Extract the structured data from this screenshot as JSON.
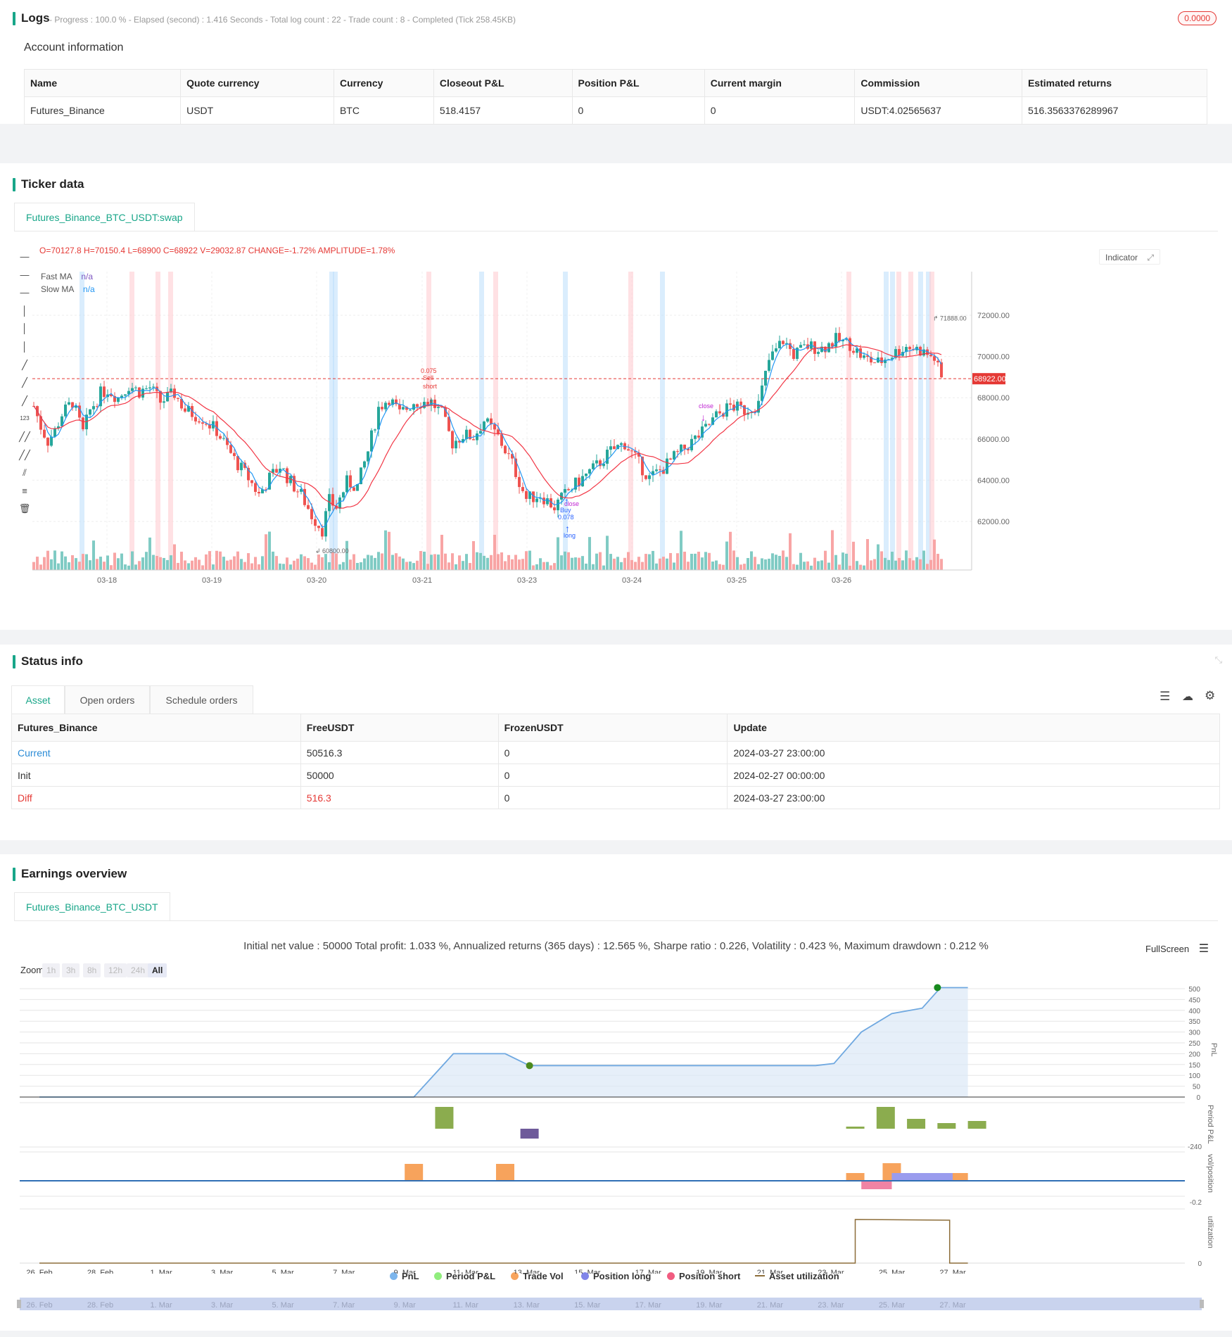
{
  "logs": {
    "title": "Logs",
    "summary": "- Progress : 100.0 % - Elapsed (second) : 1.416  Seconds - Total log count : 22 - Trade count : 8 - Completed (Tick 258.45KB)",
    "badge": "0.0000"
  },
  "account": {
    "heading": "Account information",
    "columns": [
      "Name",
      "Quote currency",
      "Currency",
      "Closeout P&L",
      "Position P&L",
      "Current margin",
      "Commission",
      "Estimated returns"
    ],
    "row": [
      "Futures_Binance",
      "USDT",
      "BTC",
      "518.4157",
      "0",
      "0",
      "USDT:4.02565637",
      "516.3563376289967"
    ]
  },
  "ticker": {
    "title": "Ticker data",
    "tab": "Futures_Binance_BTC_USDT:swap",
    "ohlc": "O=70127.8 H=70150.4 L=68900 C=68922 V=29032.87 CHANGE=-1.72% AMPLITUDE=1.78%",
    "fast_ma_label": "Fast MA",
    "fast_ma_value": "n/a",
    "slow_ma_label": "Slow MA",
    "slow_ma_value": "n/a",
    "indicator_button": "Indicator",
    "price_ticks": [
      "72000.00",
      "70000.00",
      "68000.00",
      "66000.00",
      "64000.00",
      "62000.00"
    ],
    "current_price": "68922.00",
    "high_marker": "71888.00",
    "low_marker": "60800.00",
    "date_ticks": [
      "03-18",
      "03-19",
      "03-20",
      "03-21",
      "03-23",
      "03-24",
      "03-25",
      "03-26"
    ],
    "sell_labels": [
      "0.075",
      "Sell",
      "short"
    ],
    "buy_labels": [
      "close",
      "Buy",
      "0.078",
      "long"
    ],
    "close_label": "close",
    "colors": {
      "up": "#26a69a",
      "down": "#ef5350",
      "fast_ma": "#2196f3",
      "slow_ma": "#f23645"
    }
  },
  "status": {
    "title": "Status info",
    "tabs": [
      "Asset",
      "Open orders",
      "Schedule orders"
    ],
    "columns": [
      "Futures_Binance",
      "FreeUSDT",
      "FrozenUSDT",
      "Update"
    ],
    "rows": [
      [
        "Current",
        "50516.3",
        "0",
        "2024-03-27 23:00:00"
      ],
      [
        "Init",
        "50000",
        "0",
        "2024-02-27 00:00:00"
      ],
      [
        "Diff",
        "516.3",
        "0",
        "2024-03-27 23:00:00"
      ]
    ]
  },
  "earnings": {
    "title": "Earnings overview",
    "tab": "Futures_Binance_BTC_USDT",
    "summary": "Initial net value : 50000 Total profit: 1.033 %, Annualized returns (365 days) : 12.565 %, Sharpe ratio : 0.226, Volatility : 0.423 %, Maximum drawdown : 0.212 %",
    "fullscreen": "FullScreen",
    "zoom_label": "Zoom",
    "zoom_buttons": [
      "1h",
      "3h",
      "8h",
      "12h",
      "24h",
      "All"
    ],
    "pnl_ticks": [
      "500",
      "450",
      "400",
      "350",
      "300",
      "250",
      "200",
      "150",
      "100",
      "50",
      "0"
    ],
    "axis_labels": {
      "pnl": "PnL",
      "period": "Period P&L",
      "vol": "vol/position",
      "util": "utilization"
    },
    "period_min": "-240",
    "vol_min": "-0.2",
    "util_zero": "0",
    "date_ticks": [
      "26. Feb",
      "28. Feb",
      "1. Mar",
      "3. Mar",
      "5. Mar",
      "7. Mar",
      "9. Mar",
      "11. Mar",
      "13. Mar",
      "15. Mar",
      "17. Mar",
      "19. Mar",
      "21. Mar",
      "23. Mar",
      "25. Mar",
      "27. Mar"
    ],
    "legend": [
      "PnL",
      "Period P&L",
      "Trade Vol",
      "Position long",
      "Position short",
      "Asset utilization"
    ],
    "legend_colors": [
      "#7cb5ec",
      "#90ed7d",
      "#f7a35c",
      "#8085e9",
      "#f15c80",
      "#8d6e3a"
    ]
  }
}
